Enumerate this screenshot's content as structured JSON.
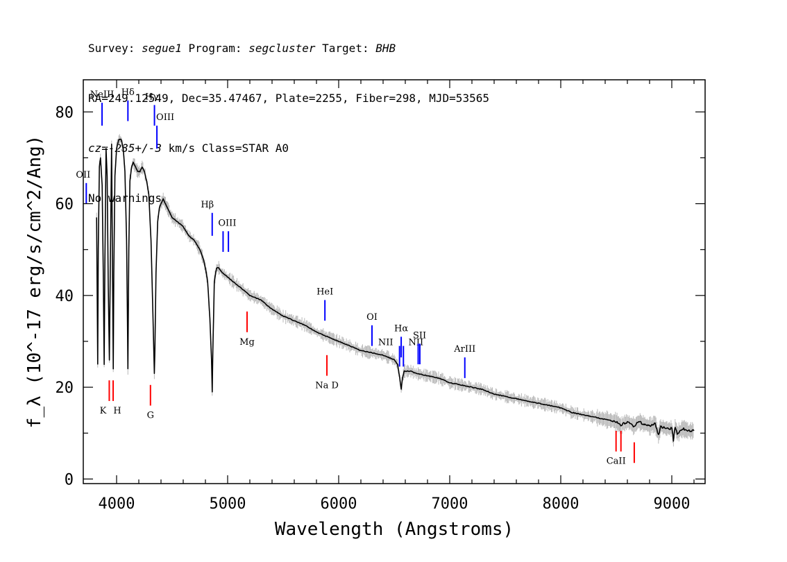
{
  "header": {
    "line1": {
      "survey_label": "Survey: ",
      "survey": "segue1",
      "program_label": " Program: ",
      "program": "segcluster",
      "target_label": " Target: ",
      "target": "BHB"
    },
    "line2": "RA=249.12549, Dec=35.47467, Plate=2255, Fiber=298, MJD=53565",
    "line3": {
      "cz": "cz=-285+/-3",
      "rest": " km/s Class=STAR A0"
    },
    "line4": "No warnings."
  },
  "chart_data": {
    "type": "line",
    "xlabel": "Wavelength (Angstroms)",
    "ylabel": "f_λ (10^-17 erg/s/cm^2/Ang)",
    "xlim": [
      3700,
      9300
    ],
    "ylim": [
      -1,
      87
    ],
    "x_ticks": [
      4000,
      5000,
      6000,
      7000,
      8000,
      9000
    ],
    "y_ticks": [
      0,
      20,
      40,
      60,
      80
    ],
    "grid": false,
    "colors": {
      "spectrum": "#000000",
      "error_band": "#b8b8b8",
      "emission_lines": "#0000ff",
      "absorption_lines": "#ff0000"
    },
    "series": [
      {
        "name": "spectrum",
        "x": [
          3820,
          3830,
          3835,
          3845,
          3855,
          3870,
          3880,
          3888,
          3895,
          3905,
          3915,
          3925,
          3935,
          3945,
          3955,
          3965,
          3970,
          3975,
          3985,
          4000,
          4020,
          4040,
          4060,
          4075,
          4090,
          4102,
          4110,
          4120,
          4135,
          4150,
          4170,
          4190,
          4210,
          4230,
          4250,
          4270,
          4290,
          4310,
          4325,
          4335,
          4340,
          4345,
          4355,
          4370,
          4385,
          4400,
          4420,
          4440,
          4460,
          4480,
          4500,
          4550,
          4600,
          4650,
          4700,
          4750,
          4780,
          4800,
          4820,
          4840,
          4855,
          4861,
          4867,
          4880,
          4900,
          4920,
          4950,
          5000,
          5100,
          5200,
          5300,
          5400,
          5500,
          5600,
          5700,
          5800,
          5900,
          6000,
          6100,
          6200,
          6300,
          6400,
          6450,
          6500,
          6530,
          6550,
          6563,
          6575,
          6590,
          6620,
          6650,
          6700,
          6800,
          6900,
          7000,
          7100,
          7200,
          7300,
          7400,
          7500,
          7600,
          7700,
          7800,
          7900,
          8000,
          8100,
          8200,
          8300,
          8400,
          8500,
          8542,
          8560,
          8600,
          8662,
          8700,
          8750,
          8800,
          8850,
          8880,
          8900,
          8950,
          9000,
          9015,
          9030,
          9050,
          9100,
          9150,
          9200
        ],
        "y": [
          57,
          25,
          50,
          68,
          70,
          64,
          45,
          25,
          48,
          72,
          66,
          42,
          26,
          50,
          73,
          40,
          24,
          45,
          66,
          72,
          74,
          74,
          72,
          67,
          52,
          24,
          50,
          65,
          68,
          69,
          68,
          67,
          67,
          68,
          67,
          65,
          62,
          52,
          38,
          28,
          23,
          28,
          45,
          56,
          59,
          60,
          61,
          60,
          59,
          58,
          57,
          56,
          55,
          53,
          52,
          50,
          48,
          46,
          43,
          35,
          26,
          19,
          28,
          43,
          46,
          46,
          45,
          44,
          42,
          40,
          39,
          37,
          35.5,
          34.5,
          33.5,
          32,
          31,
          30,
          29,
          28,
          27.5,
          27,
          26.5,
          26,
          25,
          22,
          19.5,
          22,
          23.5,
          23.5,
          23.5,
          23,
          22.5,
          22,
          21,
          20.5,
          20,
          19.5,
          18.5,
          18,
          17.5,
          17,
          16.5,
          16,
          15.5,
          14.5,
          14,
          13.5,
          13,
          12.5,
          11.5,
          12,
          12.5,
          11.5,
          12.5,
          12,
          11.5,
          12,
          9.5,
          11.5,
          11,
          11,
          8.5,
          11.5,
          10,
          11,
          10.5,
          10.5
        ]
      }
    ],
    "line_markers": [
      {
        "label": "OII",
        "wave": 3727,
        "color": "blue",
        "side": "top",
        "tick_y": [
          60,
          64.5
        ]
      },
      {
        "label": "NeIII",
        "wave": 3869,
        "color": "blue",
        "side": "top",
        "tick_y": [
          77,
          82
        ]
      },
      {
        "label": "Hδ",
        "wave": 4102,
        "color": "blue",
        "side": "top",
        "tick_y": [
          78,
          82.5
        ]
      },
      {
        "label": "Hγ",
        "wave": 4341,
        "color": "blue",
        "side": "top",
        "tick_y": [
          77,
          81.5
        ]
      },
      {
        "label": "OIII",
        "wave": 4363,
        "color": "blue",
        "side": "top",
        "tick_y": [
          72,
          77
        ]
      },
      {
        "label": "Hβ",
        "wave": 4861,
        "color": "blue",
        "side": "top",
        "tick_y": [
          53,
          58
        ]
      },
      {
        "label": "OIII",
        "wave": 4959,
        "color": "blue",
        "side": "top",
        "tick_y": [
          49.5,
          54
        ]
      },
      {
        "label": "OIII",
        "wave": 5007,
        "color": "blue",
        "side": "top",
        "tick_y": [
          49.5,
          54
        ]
      },
      {
        "label": "HeI",
        "wave": 5876,
        "color": "blue",
        "side": "top",
        "tick_y": [
          34.5,
          39
        ]
      },
      {
        "label": "OI",
        "wave": 6300,
        "color": "blue",
        "side": "top",
        "tick_y": [
          29,
          33.5
        ]
      },
      {
        "label": "NII",
        "wave": 6548,
        "color": "blue",
        "side": "top",
        "tick_y": [
          24.5,
          29
        ]
      },
      {
        "label": "Hα",
        "wave": 6563,
        "color": "blue",
        "side": "top",
        "tick_y": [
          26.5,
          31
        ]
      },
      {
        "label": "NII",
        "wave": 6583,
        "color": "blue",
        "side": "top",
        "tick_y": [
          24.5,
          29
        ]
      },
      {
        "label": "SII",
        "wave": 6716,
        "color": "blue",
        "side": "top",
        "tick_y": [
          25,
          29.5
        ]
      },
      {
        "label": "SII",
        "wave": 6731,
        "color": "blue",
        "side": "top",
        "tick_y": [
          25,
          29.5
        ]
      },
      {
        "label": "ArIII",
        "wave": 7136,
        "color": "blue",
        "side": "top",
        "tick_y": [
          22,
          26.5
        ]
      },
      {
        "label": "K",
        "wave": 3934,
        "color": "red",
        "side": "bottom",
        "tick_y": [
          17,
          21.5
        ]
      },
      {
        "label": "H",
        "wave": 3969,
        "color": "red",
        "side": "bottom",
        "tick_y": [
          17,
          21.5
        ]
      },
      {
        "label": "G",
        "wave": 4305,
        "color": "red",
        "side": "bottom",
        "tick_y": [
          16,
          20.5
        ]
      },
      {
        "label": "Mg",
        "wave": 5175,
        "color": "red",
        "side": "bottom",
        "tick_y": [
          32,
          36.5
        ]
      },
      {
        "label": "Na D",
        "wave": 5894,
        "color": "red",
        "side": "bottom",
        "tick_y": [
          22.5,
          27
        ]
      },
      {
        "label": "CaII",
        "wave": 8498,
        "color": "red",
        "side": "bottom",
        "tick_y": [
          6,
          10.5
        ]
      },
      {
        "label": "CaII",
        "wave": 8542,
        "color": "red",
        "side": "bottom",
        "tick_y": [
          6,
          10.5
        ]
      },
      {
        "label": "CaII",
        "wave": 8662,
        "color": "red",
        "side": "bottom",
        "tick_y": [
          3.5,
          8
        ]
      }
    ]
  }
}
